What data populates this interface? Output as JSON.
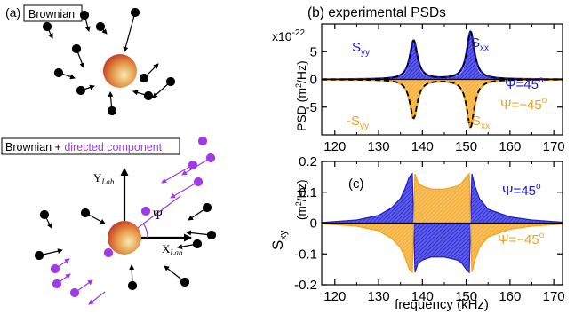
{
  "panel_a": {
    "label": "(a)",
    "brownian_box": "Brownian",
    "directed_box_prefix": "Brownian + ",
    "directed_box_suffix": "directed component",
    "y_axis_label": "Y",
    "y_axis_sub": "Lab",
    "x_axis_label": "X",
    "x_axis_sub": "Lab",
    "angle_label": "Ψ"
  },
  "panel_b": {
    "title": "(b) experimental PSDs",
    "exponent_base": "x10",
    "exponent_power": "-22",
    "ylabel_prefix": "PSD (m",
    "ylabel_sup": "2",
    "ylabel_suffix": "/Hz)",
    "label_syy": "S",
    "label_syy_sub": "yy",
    "label_sxx": "S",
    "label_sxx_sub": "xx",
    "label_neg_syy": "-S",
    "label_neg_syy_sub": "yy",
    "label_neg_sxx": "-S",
    "label_neg_sxx_sub": "xx",
    "psi_pos": "Ψ=45",
    "psi_neg": "Ψ=−45",
    "degree": "o"
  },
  "panel_c": {
    "label": "(c)",
    "ylabel_main": "S",
    "ylabel_sub": "xy",
    "unit_prefix": "(m",
    "unit_sup": "2",
    "unit_suffix": "/Hz)",
    "xlabel": "frequency (kHz)",
    "psi_pos": "Ψ=45",
    "psi_neg": "Ψ=−45",
    "degree": "o"
  },
  "colors": {
    "blue": "#1c1ccc",
    "orange": "#f3a21a",
    "purple": "#a03ae8",
    "sphere_center": "#f6e9b0",
    "sphere_edge": "#b8261a"
  },
  "chart_data": [
    {
      "type": "area",
      "panel": "(b)",
      "title": "(b) experimental PSDs",
      "xlabel": "",
      "ylabel": "PSD (m2/Hz)",
      "y_multiplier": "x10-22",
      "xlim": [
        117,
        172
      ],
      "ylim": [
        -10,
        10
      ],
      "xticks": [
        120,
        130,
        140,
        150,
        160,
        170
      ],
      "yticks": [
        -5,
        0,
        5
      ],
      "resonances": [
        {
          "name": "Syy",
          "f0": 138.0,
          "peak": 6.5
        },
        {
          "name": "Sxx",
          "f0": 151.0,
          "peak": 8.0
        }
      ],
      "series": [
        {
          "name": "Ψ=45",
          "sign": 1,
          "x": [
            117,
            125,
            130,
            133,
            135,
            136,
            137,
            137.5,
            138,
            138.5,
            139,
            140,
            142,
            145,
            148,
            149,
            150,
            150.5,
            151,
            151.5,
            152,
            153,
            155,
            160,
            165,
            172
          ],
          "y": [
            0.1,
            0.2,
            0.4,
            0.9,
            1.8,
            3.0,
            5.0,
            6.0,
            6.5,
            6.0,
            5.0,
            3.0,
            1.5,
            1.0,
            1.8,
            3.0,
            5.0,
            6.5,
            8.0,
            6.5,
            5.0,
            3.0,
            1.5,
            0.5,
            0.3,
            0.1
          ]
        },
        {
          "name": "Ψ=−45",
          "sign": -1,
          "x": [
            117,
            125,
            130,
            133,
            135,
            136,
            137,
            137.5,
            138,
            138.5,
            139,
            140,
            142,
            145,
            148,
            149,
            150,
            150.5,
            151,
            151.5,
            152,
            153,
            155,
            160,
            165,
            172
          ],
          "y": [
            -0.1,
            -0.2,
            -0.4,
            -0.9,
            -1.8,
            -3.0,
            -5.0,
            -6.0,
            -6.5,
            -6.0,
            -5.0,
            -3.0,
            -1.5,
            -1.0,
            -1.8,
            -3.0,
            -5.0,
            -6.5,
            -8.0,
            -6.5,
            -5.0,
            -3.0,
            -1.5,
            -0.5,
            -0.3,
            -0.1
          ]
        }
      ],
      "grid": false
    },
    {
      "type": "area",
      "panel": "(c)",
      "xlabel": "frequency (kHz)",
      "ylabel": "Sxy (m2/Hz)",
      "xlim": [
        117,
        172
      ],
      "ylim": [
        -0.2,
        0.2
      ],
      "xticks": [
        120,
        130,
        140,
        150,
        160,
        170
      ],
      "yticks": [
        -0.2,
        -0.1,
        0,
        0.1,
        0.2
      ],
      "series": [
        {
          "name": "Ψ=45",
          "x": [
            117,
            125,
            130,
            133,
            135,
            136,
            137,
            137.7,
            138.3,
            139,
            140,
            142,
            145,
            148,
            149,
            150,
            150.7,
            151.3,
            152,
            153,
            155,
            160,
            165,
            172
          ],
          "y": [
            0.002,
            0.01,
            0.025,
            0.05,
            0.08,
            0.11,
            0.15,
            0.16,
            -0.16,
            -0.13,
            -0.12,
            -0.11,
            -0.11,
            -0.12,
            -0.13,
            -0.15,
            -0.16,
            0.16,
            0.12,
            0.08,
            0.045,
            0.02,
            0.01,
            0.003
          ]
        },
        {
          "name": "Ψ=−45",
          "x": [
            117,
            125,
            130,
            133,
            135,
            136,
            137,
            137.7,
            138.3,
            139,
            140,
            142,
            145,
            148,
            149,
            150,
            150.7,
            151.3,
            152,
            153,
            155,
            160,
            165,
            172
          ],
          "y": [
            -0.002,
            -0.01,
            -0.025,
            -0.05,
            -0.08,
            -0.11,
            -0.15,
            -0.16,
            0.16,
            0.13,
            0.12,
            0.11,
            0.11,
            0.12,
            0.13,
            0.15,
            0.16,
            -0.16,
            -0.12,
            -0.08,
            -0.045,
            -0.02,
            -0.01,
            -0.003
          ]
        }
      ],
      "grid": false
    }
  ]
}
